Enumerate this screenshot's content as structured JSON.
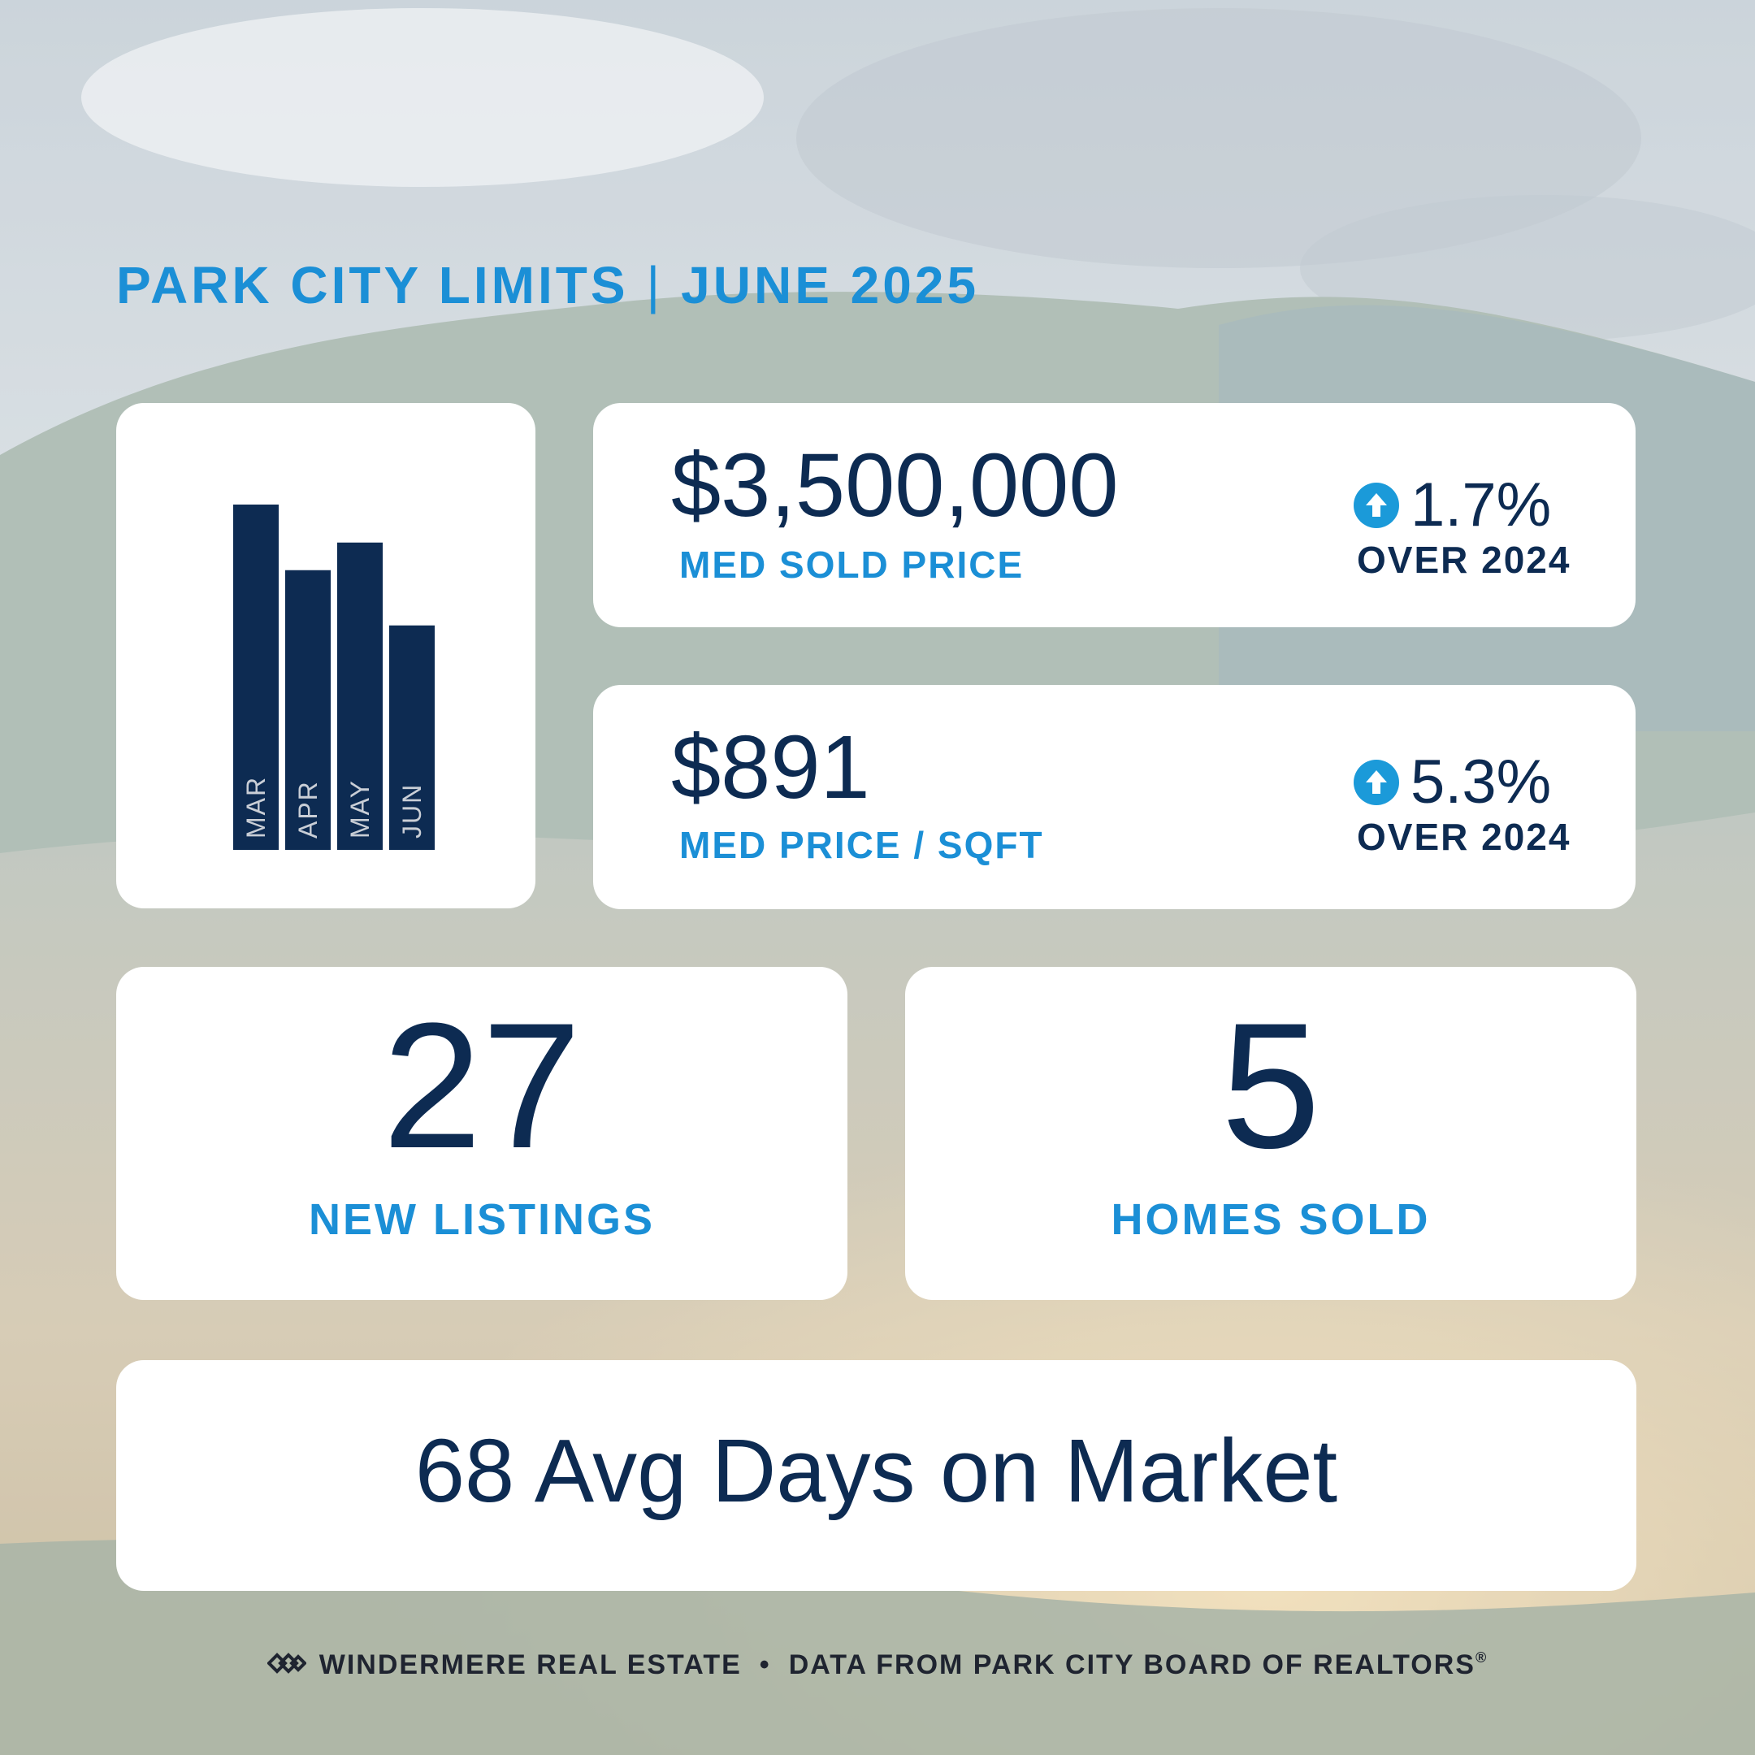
{
  "header": {
    "region": "PARK CITY LIMITS",
    "separator": "|",
    "period": "JUNE 2025"
  },
  "colors": {
    "navy": "#0d2b52",
    "accent_blue": "#1b8fd6",
    "card_bg": "#ffffff"
  },
  "chart_data": {
    "type": "bar",
    "categories": [
      "MAR",
      "APR",
      "MAY",
      "JUN"
    ],
    "values": [
      100,
      81,
      89,
      65
    ],
    "ylim": [
      0,
      100
    ],
    "grid": false,
    "title": "",
    "xlabel": "",
    "ylabel": ""
  },
  "metrics": {
    "med_sold_price": {
      "value": "$3,500,000",
      "label": "MED SOLD PRICE",
      "change": "1.7%",
      "change_label": "OVER 2024",
      "direction_icon": "arrow-up-icon"
    },
    "med_price_sqft": {
      "value": "$891",
      "label": "MED PRICE / SQFT",
      "change": "5.3%",
      "change_label": "OVER 2024",
      "direction_icon": "arrow-up-icon"
    },
    "new_listings": {
      "value": "27",
      "label": "NEW LISTINGS"
    },
    "homes_sold": {
      "value": "5",
      "label": "HOMES SOLD"
    },
    "avg_days": {
      "text": "68 Avg Days on Market"
    }
  },
  "footer": {
    "brand": "WINDERMERE REAL ESTATE",
    "bullet": "•",
    "source": "DATA FROM PARK CITY BOARD OF REALTORS",
    "registered_mark": "®",
    "logo_icon": "windermere-logo-icon"
  }
}
